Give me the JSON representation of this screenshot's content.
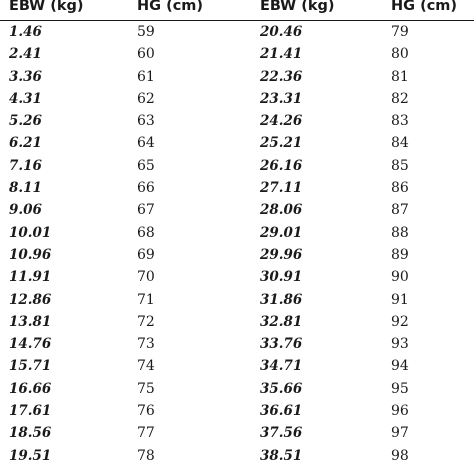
{
  "table": {
    "headers": [
      "EBW (kg)",
      "HG (cm)",
      "EBW (kg)",
      "HG (cm)"
    ],
    "rows": [
      [
        "1.46",
        "59",
        "20.46",
        "79"
      ],
      [
        "2.41",
        "60",
        "21.41",
        "80"
      ],
      [
        "3.36",
        "61",
        "22.36",
        "81"
      ],
      [
        "4.31",
        "62",
        "23.31",
        "82"
      ],
      [
        "5.26",
        "63",
        "24.26",
        "83"
      ],
      [
        "6.21",
        "64",
        "25.21",
        "84"
      ],
      [
        "7.16",
        "65",
        "26.16",
        "85"
      ],
      [
        "8.11",
        "66",
        "27.11",
        "86"
      ],
      [
        "9.06",
        "67",
        "28.06",
        "87"
      ],
      [
        "10.01",
        "68",
        "29.01",
        "88"
      ],
      [
        "10.96",
        "69",
        "29.96",
        "89"
      ],
      [
        "11.91",
        "70",
        "30.91",
        "90"
      ],
      [
        "12.86",
        "71",
        "31.86",
        "91"
      ],
      [
        "13.81",
        "72",
        "32.81",
        "92"
      ],
      [
        "14.76",
        "73",
        "33.76",
        "93"
      ],
      [
        "15.71",
        "74",
        "34.71",
        "94"
      ],
      [
        "16.66",
        "75",
        "35.66",
        "95"
      ],
      [
        "17.61",
        "76",
        "36.61",
        "96"
      ],
      [
        "18.56",
        "77",
        "37.56",
        "97"
      ],
      [
        "19.51",
        "78",
        "38.51",
        "98"
      ]
    ]
  }
}
